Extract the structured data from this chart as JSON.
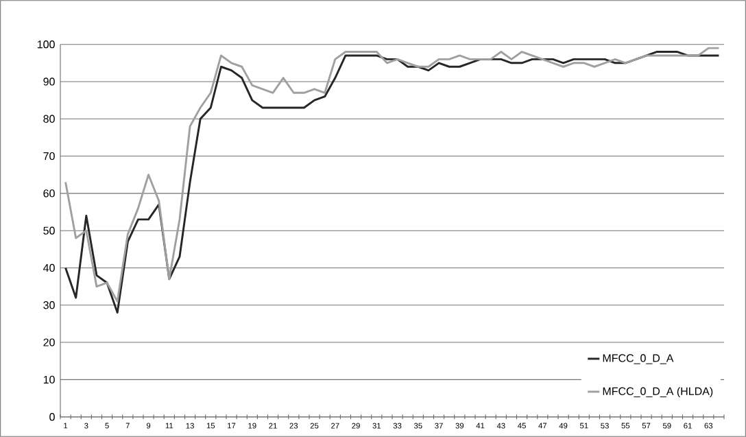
{
  "chart_data": {
    "type": "line",
    "categories": [
      "1",
      null,
      "3",
      null,
      "5",
      null,
      "7",
      null,
      "9",
      null,
      "11",
      null,
      "13",
      null,
      "15",
      null,
      "17",
      null,
      "19",
      null,
      "21",
      null,
      "23",
      null,
      "25",
      null,
      "27",
      null,
      "29",
      null,
      "31",
      null,
      "33",
      null,
      "35",
      null,
      "37",
      null,
      "39",
      null,
      "41",
      null,
      "43",
      null,
      "45",
      null,
      "47",
      null,
      "49",
      null,
      "51",
      null,
      "53",
      null,
      "55",
      null,
      "57",
      null,
      "59",
      null,
      "61",
      null,
      "63",
      null
    ],
    "series": [
      {
        "name": "MFCC_0_D_A",
        "color": "#262626",
        "values": [
          40,
          32,
          54,
          38,
          36,
          28,
          47,
          53,
          53,
          57,
          37,
          43,
          63,
          80,
          83,
          94,
          93,
          91,
          85,
          83,
          83,
          83,
          83,
          83,
          85,
          86,
          91,
          97,
          97,
          97,
          97,
          96,
          96,
          94,
          94,
          93,
          95,
          94,
          94,
          95,
          96,
          96,
          96,
          95,
          95,
          96,
          96,
          96,
          95,
          96,
          96,
          96,
          96,
          95,
          95,
          96,
          97,
          98,
          98,
          98,
          97,
          97,
          97,
          97
        ]
      },
      {
        "name": "MFCC_0_D_A (HLDA)",
        "color": "#a0a0a0",
        "values": [
          63,
          48,
          50,
          35,
          36,
          31,
          49,
          56,
          65,
          58,
          37,
          53,
          78,
          83,
          87,
          97,
          95,
          94,
          89,
          88,
          87,
          91,
          87,
          87,
          88,
          87,
          96,
          98,
          98,
          98,
          98,
          95,
          96,
          95,
          94,
          94,
          96,
          96,
          97,
          96,
          96,
          96,
          98,
          96,
          98,
          97,
          96,
          95,
          94,
          95,
          95,
          94,
          95,
          96,
          95,
          96,
          97,
          97,
          97,
          97,
          97,
          97,
          99,
          99
        ]
      }
    ],
    "ylim": [
      0,
      100
    ],
    "yticks": [
      0,
      10,
      20,
      30,
      40,
      50,
      60,
      70,
      80,
      90,
      100
    ],
    "grid": "y",
    "legend": "bottom right",
    "marker": "none",
    "line_style": "solid"
  }
}
